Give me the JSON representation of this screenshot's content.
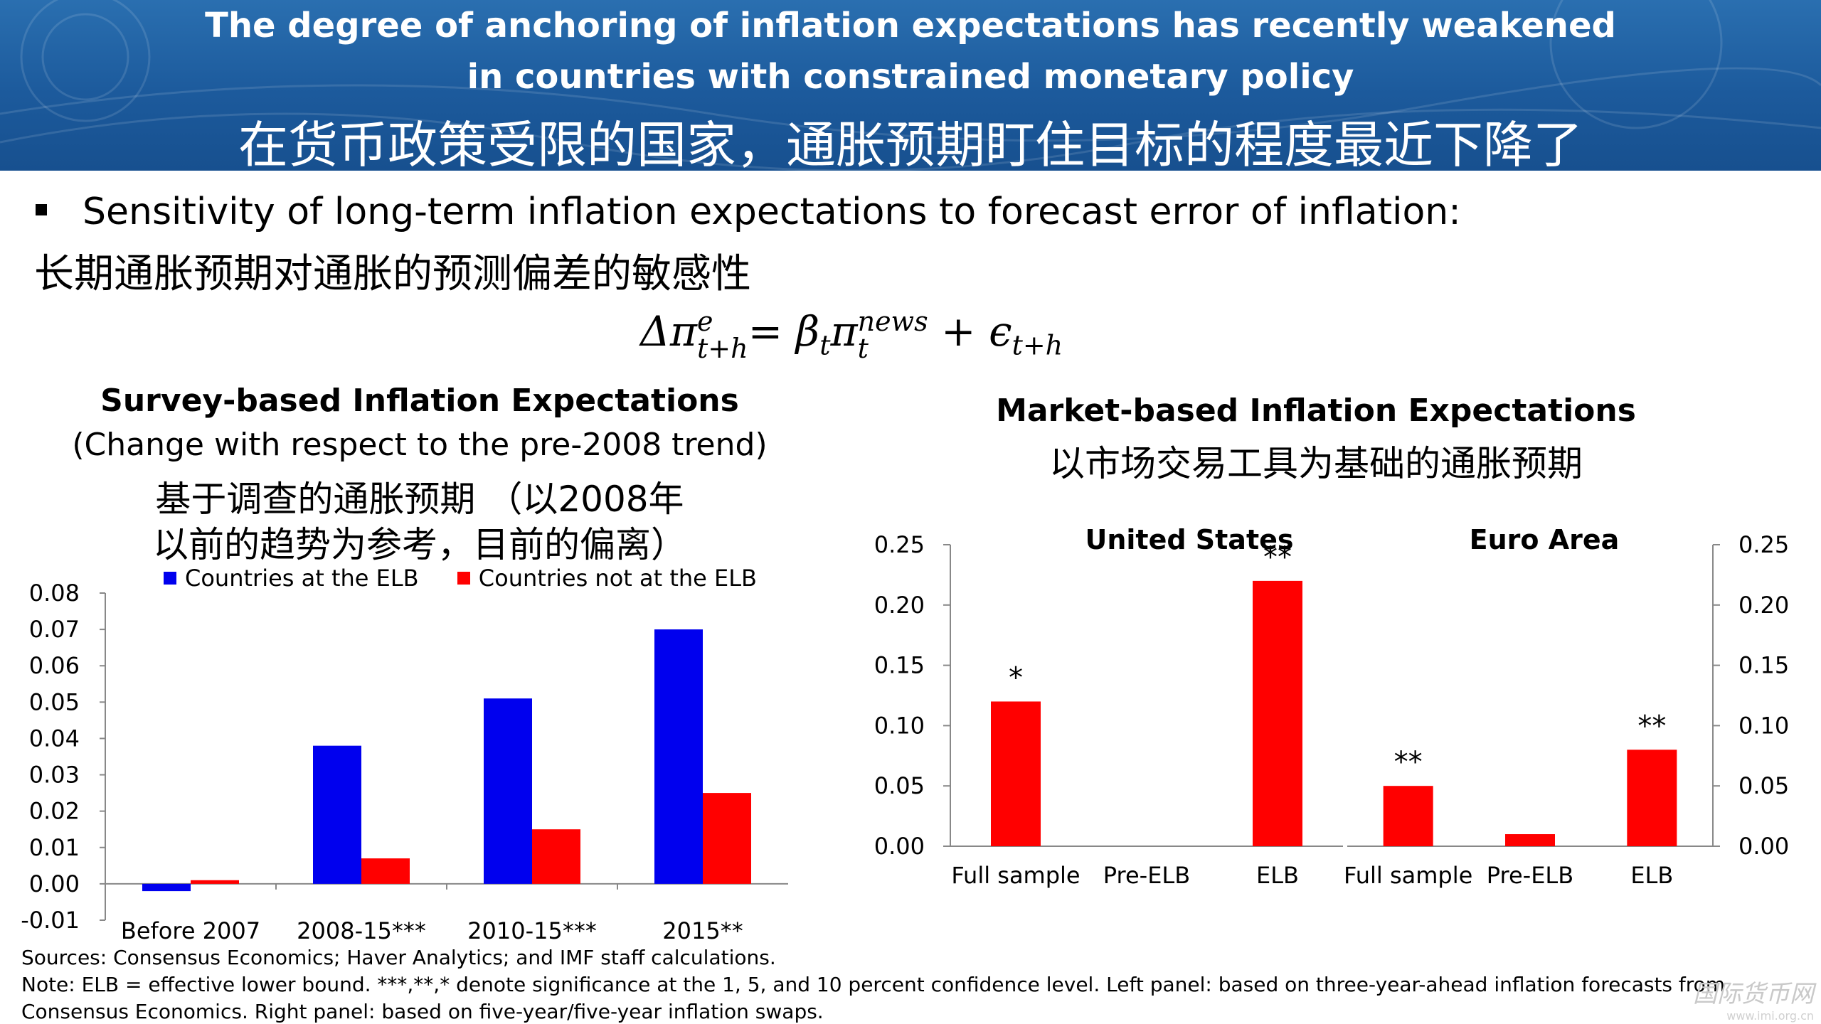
{
  "header": {
    "title_en_line1": "The degree of anchoring of inflation expectations has recently weakened",
    "title_en_line2": "in countries with constrained monetary policy",
    "title_zh": "在货币政策受限的国家，通胀预期盯住目标的程度最近下降了",
    "bg_color": "#1c5a9c"
  },
  "bullet": {
    "text": "Sensitivity of long-term inflation expectations to forecast error of inflation:",
    "text_zh": "长期通胀预期对通胀的预测偏差的敏感性",
    "icon": "square-bullet-icon"
  },
  "formula": {
    "delta": "Δπ",
    "lhs_sub": "t+h",
    "lhs_sup": "e",
    "equals": "=",
    "beta": "β",
    "beta_sub": "t",
    "pi": "π",
    "pi_sub": "t",
    "pi_sup": "news",
    "plus": "+",
    "eps": "ϵ",
    "eps_sub": "t+h"
  },
  "left_panel": {
    "title": "Survey-based Inflation Expectations",
    "subtitle": "(Change with respect to the pre-2008 trend)",
    "title_zh_1": "基于调查的通胀预期 （以2008年",
    "title_zh_2": "以前的趋势为参考，目前的偏离）"
  },
  "right_panel": {
    "title": "Market-based Inflation Expectations",
    "title_zh": "以市场交易工具为基础的通胀预期"
  },
  "notes": {
    "sources": "Sources: Consensus Economics; Haver Analytics; and IMF staff calculations.",
    "note_line1": "Note: ELB = effective lower bound. ***,**,* denote significance at the 1, 5, and 10 percent confidence level. Left panel: based on three-year-ahead inflation forecasts from",
    "note_line2": "Consensus Economics. Right panel: based on five-year/five-year inflation swaps."
  },
  "watermark": {
    "text_zh": "国际货币网",
    "url": "www.imi.org.cn"
  },
  "chart_data": [
    {
      "type": "bar",
      "categories": [
        "Before 2007",
        "2008-15***",
        "2010-15***",
        "2015**"
      ],
      "series": [
        {
          "name": "Countries at the ELB",
          "color": "#0000ee",
          "values": [
            -0.002,
            0.038,
            0.051,
            0.07
          ]
        },
        {
          "name": "Countries not at the ELB",
          "color": "#ff0000",
          "values": [
            0.001,
            0.007,
            0.015,
            0.025
          ]
        }
      ],
      "ylim": [
        -0.01,
        0.08
      ],
      "yticks": [
        "-0.01",
        "0.00",
        "0.01",
        "0.02",
        "0.03",
        "0.04",
        "0.05",
        "0.06",
        "0.07",
        "0.08"
      ],
      "legend": "top",
      "grid": false
    },
    {
      "type": "bar",
      "panel": "United States",
      "categories": [
        "Full sample",
        "Pre-ELB",
        "ELB"
      ],
      "values": [
        0.12,
        0.0,
        0.22
      ],
      "significance": [
        "*",
        "",
        "**"
      ],
      "color": "#ff0000",
      "ylim": [
        0,
        0.25
      ],
      "yticks": [
        "0.00",
        "0.05",
        "0.10",
        "0.15",
        "0.20",
        "0.25"
      ],
      "axis": "left"
    },
    {
      "type": "bar",
      "panel": "Euro Area",
      "categories": [
        "Full sample",
        "Pre-ELB",
        "ELB"
      ],
      "values": [
        0.05,
        0.01,
        0.08
      ],
      "significance": [
        "**",
        "",
        "**"
      ],
      "color": "#ff0000",
      "ylim": [
        0,
        0.25
      ],
      "yticks": [
        "0.00",
        "0.05",
        "0.10",
        "0.15",
        "0.20",
        "0.25"
      ],
      "axis": "right"
    }
  ]
}
